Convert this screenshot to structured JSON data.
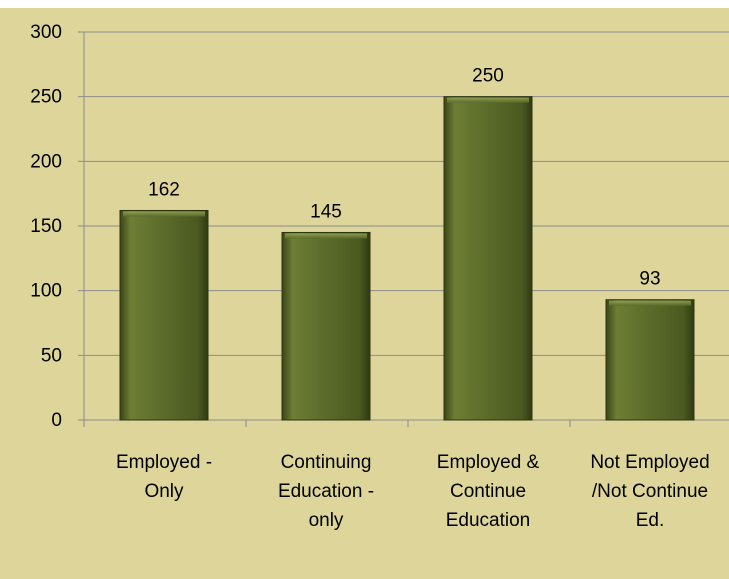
{
  "chart_data": {
    "type": "bar",
    "categories": [
      [
        "Employed -",
        "Only"
      ],
      [
        "Continuing",
        "Education -",
        "only"
      ],
      [
        "Employed &",
        "Continue",
        "Education"
      ],
      [
        "Not Employed",
        "/Not Continue",
        "Ed."
      ]
    ],
    "values": [
      162,
      145,
      250,
      93
    ],
    "data_labels": [
      "162",
      "145",
      "250",
      "93"
    ],
    "y_ticks": [
      "0",
      "50",
      "100",
      "150",
      "200",
      "250",
      "300"
    ],
    "ylim": [
      0,
      300
    ],
    "grid": true,
    "legend": "none",
    "colors": {
      "background": "#ddd59a",
      "bar": "#5a6b2a",
      "bar_dark": "#3a4617",
      "bar_light": "#7f8f45",
      "grid": "#8c8c8c"
    }
  }
}
